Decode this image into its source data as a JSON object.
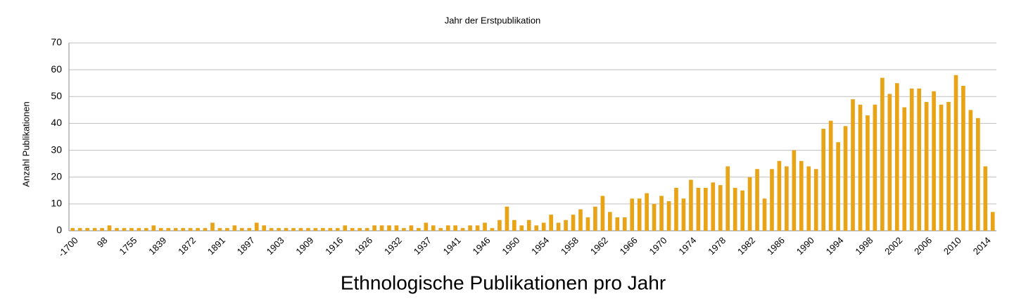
{
  "chart_data": {
    "type": "bar",
    "title": "Jahr der Erstpublikation",
    "y_label": "Anzahl Publikationen",
    "x_label": "Ethnologische Publikationen pro Jahr",
    "categories": [
      "-1700",
      null,
      null,
      null,
      "98",
      null,
      null,
      null,
      "1755",
      null,
      null,
      null,
      "1839",
      null,
      null,
      null,
      "1872",
      null,
      null,
      null,
      "1891",
      null,
      null,
      null,
      "1897",
      null,
      null,
      null,
      "1903",
      null,
      null,
      null,
      "1909",
      null,
      null,
      null,
      "1916",
      null,
      null,
      null,
      "1926",
      null,
      null,
      null,
      "1932",
      null,
      null,
      null,
      "1937",
      null,
      null,
      null,
      "1941",
      null,
      null,
      null,
      "1946",
      null,
      null,
      null,
      "1950",
      null,
      null,
      null,
      "1954",
      null,
      null,
      null,
      "1958",
      null,
      null,
      null,
      "1962",
      null,
      null,
      null,
      "1966",
      null,
      null,
      null,
      "1970",
      null,
      null,
      null,
      "1974",
      null,
      null,
      null,
      "1978",
      null,
      null,
      null,
      "1982",
      null,
      null,
      null,
      "1986",
      null,
      null,
      null,
      "1990",
      null,
      null,
      null,
      "1994",
      null,
      null,
      null,
      "1998",
      null,
      null,
      null,
      "2002",
      null,
      null,
      null,
      "2006",
      null,
      null,
      null,
      "2010",
      null,
      null,
      null,
      "2014",
      null
    ],
    "values": [
      1,
      1,
      1,
      1,
      1,
      2,
      1,
      1,
      1,
      1,
      1,
      2,
      1,
      1,
      1,
      1,
      1,
      1,
      1,
      3,
      1,
      1,
      2,
      1,
      1,
      3,
      2,
      1,
      1,
      1,
      1,
      1,
      1,
      1,
      1,
      1,
      1,
      2,
      1,
      1,
      1,
      2,
      2,
      2,
      2,
      1,
      2,
      1,
      3,
      2,
      1,
      2,
      2,
      1,
      2,
      2,
      3,
      1,
      4,
      9,
      4,
      2,
      4,
      2,
      3,
      6,
      3,
      4,
      6,
      8,
      5,
      9,
      13,
      7,
      5,
      5,
      12,
      12,
      14,
      10,
      13,
      11,
      16,
      12,
      19,
      16,
      16,
      18,
      17,
      24,
      16,
      15,
      20,
      23,
      12,
      23,
      26,
      24,
      30,
      26,
      24,
      23,
      38,
      41,
      33,
      39,
      49,
      47,
      43,
      47,
      57,
      51,
      55,
      46,
      53,
      53,
      48,
      52,
      47,
      48,
      58,
      54,
      45,
      42,
      24,
      7
    ],
    "color": "#e8a317",
    "ylim": [
      0,
      70
    ],
    "yticks": [
      0,
      10,
      20,
      30,
      40,
      50,
      60,
      70
    ],
    "grid": true
  }
}
